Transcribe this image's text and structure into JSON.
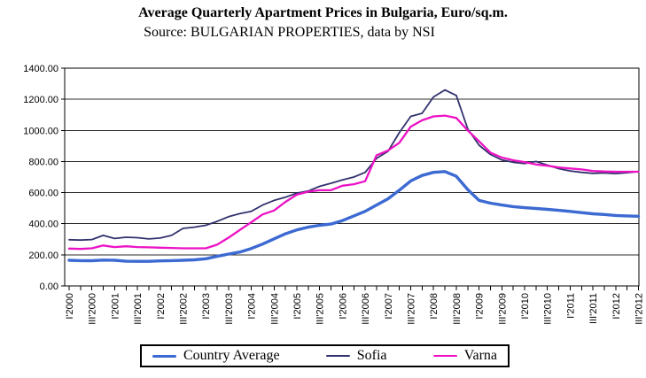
{
  "title": "Average Quarterly Apartment Prices in Bulgaria, Euro/sq.m.",
  "subtitle": "Source: BULGARIAN PROPERTIES, data by NSI",
  "chart_data": {
    "type": "line",
    "title": "Average Quarterly Apartment Prices in Bulgaria, Euro/sq.m.",
    "subtitle": "Source: BULGARIAN PROPERTIES, data by NSI",
    "xlabel": "",
    "ylabel": "",
    "ylim": [
      0,
      1400
    ],
    "y_tick_step": 200,
    "y_tick_decimals": 2,
    "x_tick_label_every": 2,
    "grid": "horizontal",
    "legend_position": "bottom",
    "x": [
      "I'2000",
      "II'2000",
      "III'2000",
      "IV'2000",
      "I'2001",
      "II'2001",
      "III'2001",
      "IV'2001",
      "I'2002",
      "II'2002",
      "III'2002",
      "IV'2002",
      "I'2003",
      "II'2003",
      "III'2003",
      "IV'2003",
      "I'2004",
      "II'2004",
      "III'2004",
      "IV'2004",
      "I'2005",
      "II'2005",
      "III'2005",
      "IV'2005",
      "I'2006",
      "II'2006",
      "III'2006",
      "IV'2006",
      "I'2007",
      "II'2007",
      "III'2007",
      "IV'2007",
      "I'2008",
      "II'2008",
      "III'2008",
      "IV'2008",
      "I'2009",
      "II'2009",
      "III'2009",
      "IV'2009",
      "I'2010",
      "II'2010",
      "III'2010",
      "IV'2010",
      "I'2011",
      "II'2011",
      "III'2011",
      "IV'2011",
      "I'2012",
      "II'2012",
      "III'2012"
    ],
    "series": [
      {
        "name": "Country Average",
        "color": "#3c6ad2",
        "width": 3.4,
        "values": [
          165,
          163,
          162,
          166,
          165,
          159,
          158,
          158,
          161,
          163,
          165,
          168,
          175,
          190,
          205,
          218,
          241,
          269,
          303,
          335,
          360,
          378,
          390,
          398,
          420,
          450,
          480,
          520,
          560,
          615,
          675,
          710,
          730,
          735,
          705,
          620,
          550,
          532,
          520,
          510,
          503,
          498,
          492,
          486,
          479,
          471,
          464,
          459,
          453,
          450,
          448
        ]
      },
      {
        "name": "Sofia",
        "color": "#32326e",
        "width": 1.8,
        "values": [
          297,
          295,
          298,
          325,
          305,
          313,
          310,
          302,
          308,
          325,
          370,
          378,
          390,
          415,
          445,
          465,
          480,
          520,
          550,
          570,
          597,
          610,
          640,
          660,
          682,
          700,
          730,
          820,
          865,
          985,
          1090,
          1110,
          1215,
          1260,
          1225,
          1010,
          905,
          845,
          810,
          795,
          787,
          800,
          777,
          754,
          739,
          730,
          724,
          727,
          722,
          728,
          735
        ]
      },
      {
        "name": "Varna",
        "color": "#ec12c4",
        "width": 2.3,
        "values": [
          240,
          238,
          242,
          260,
          250,
          255,
          250,
          248,
          246,
          244,
          242,
          242,
          242,
          265,
          310,
          360,
          410,
          460,
          485,
          540,
          587,
          606,
          615,
          616,
          644,
          654,
          673,
          840,
          870,
          920,
          1024,
          1065,
          1090,
          1095,
          1080,
          1000,
          930,
          857,
          825,
          808,
          796,
          781,
          773,
          762,
          755,
          749,
          739,
          736,
          734,
          734,
          734
        ]
      }
    ]
  }
}
